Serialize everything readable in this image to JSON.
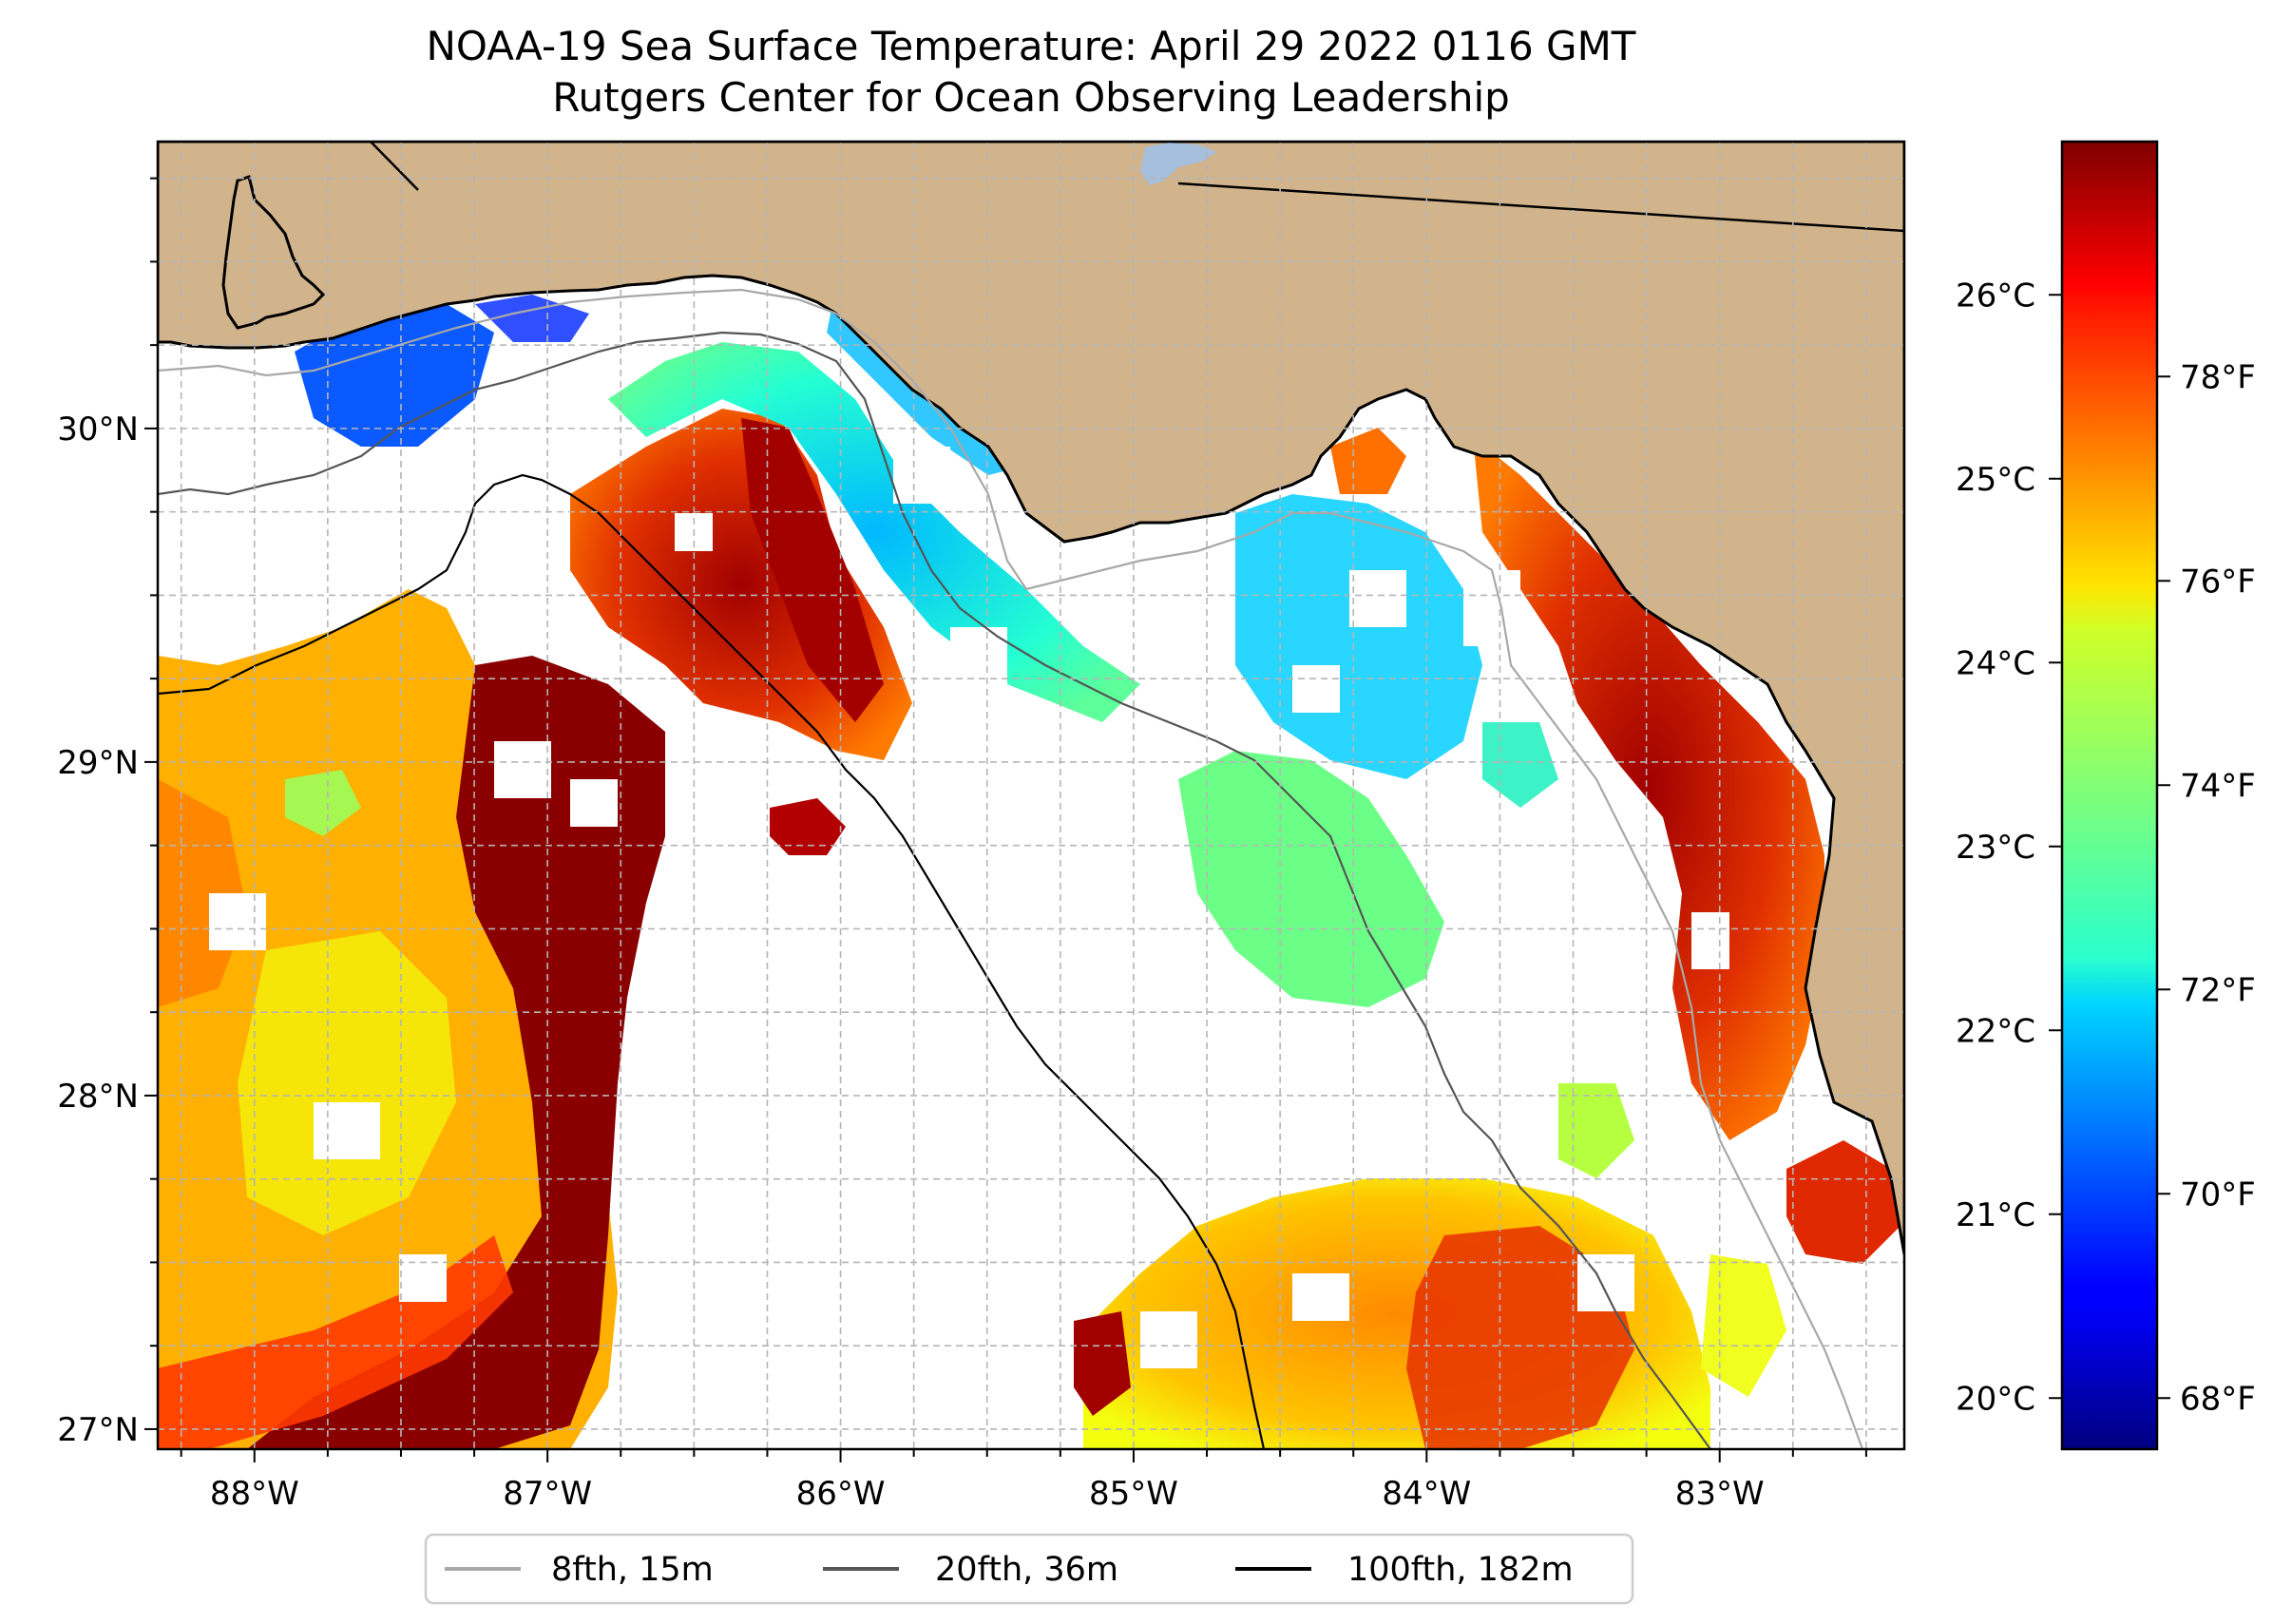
{
  "title": {
    "line1": "NOAA-19 Sea Surface Temperature: April 29 2022 0116 GMT",
    "line2": "Rutgers Center for Ocean Observing Leadership"
  },
  "map": {
    "lon_range": [
      -88.33,
      -82.37
    ],
    "lat_range": [
      26.94,
      30.86
    ],
    "longitude_ticks": [
      {
        "value": -88,
        "label": "88°W"
      },
      {
        "value": -87,
        "label": "87°W"
      },
      {
        "value": -86,
        "label": "86°W"
      },
      {
        "value": -85,
        "label": "85°W"
      },
      {
        "value": -84,
        "label": "84°W"
      },
      {
        "value": -83,
        "label": "83°W"
      }
    ],
    "latitude_ticks": [
      {
        "value": 30,
        "label": "30°N"
      },
      {
        "value": 29,
        "label": "29°N"
      },
      {
        "value": 28,
        "label": "28°N"
      },
      {
        "value": 27,
        "label": "27°N"
      }
    ],
    "colors": {
      "land": "#d2b48c",
      "water_no_data": "#ffffff",
      "lake": "#a5bfdd",
      "grid": "#b0b0b0",
      "coastline": "#000000"
    }
  },
  "colorbar": {
    "colormap": "jet",
    "range_f": [
      67.5,
      80.3
    ],
    "celsius_ticks": [
      {
        "value": 26,
        "label": "26°C"
      },
      {
        "value": 25,
        "label": "25°C"
      },
      {
        "value": 24,
        "label": "24°C"
      },
      {
        "value": 23,
        "label": "23°C"
      },
      {
        "value": 22,
        "label": "22°C"
      },
      {
        "value": 21,
        "label": "21°C"
      },
      {
        "value": 20,
        "label": "20°C"
      }
    ],
    "fahrenheit_ticks": [
      {
        "value": 78,
        "label": "78°F"
      },
      {
        "value": 76,
        "label": "76°F"
      },
      {
        "value": 74,
        "label": "74°F"
      },
      {
        "value": 72,
        "label": "72°F"
      },
      {
        "value": 70,
        "label": "70°F"
      },
      {
        "value": 68,
        "label": "68°F"
      }
    ]
  },
  "legend": {
    "entries": [
      {
        "label": "8fth, 15m",
        "color": "#a8a8a8"
      },
      {
        "label": "20fth, 36m",
        "color": "#555555"
      },
      {
        "label": "100fth, 182m",
        "color": "#000000"
      }
    ]
  }
}
